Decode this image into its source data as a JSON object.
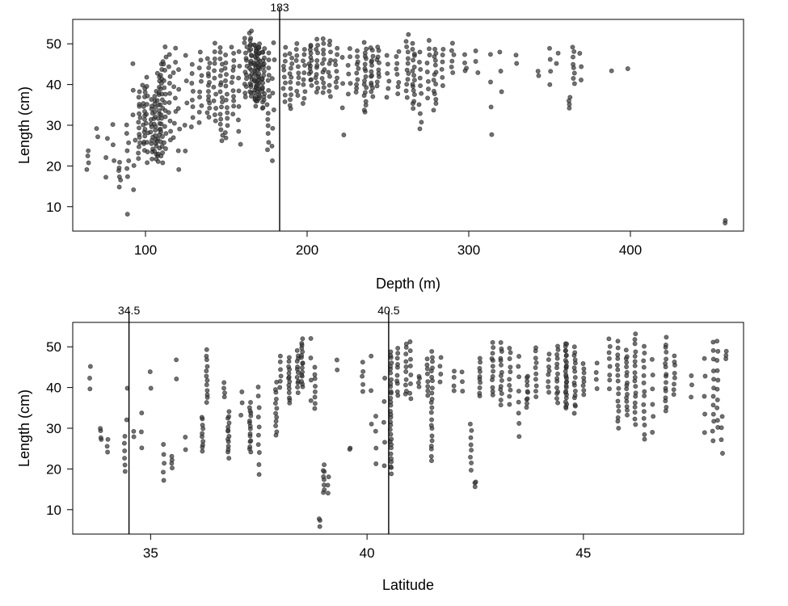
{
  "colors": {
    "point_fill": "#3a3a3a",
    "point_stroke": "#111111",
    "axis": "#000000",
    "background": "#ffffff"
  },
  "chart_data": [
    {
      "type": "scatter",
      "title": "",
      "xlabel": "Depth (m)",
      "ylabel": "Length (cm)",
      "xlim": [
        55,
        470
      ],
      "ylim": [
        4,
        56
      ],
      "xticks": [
        100,
        200,
        300,
        400
      ],
      "yticks": [
        10,
        20,
        30,
        40,
        50
      ],
      "grid": false,
      "legend": "none",
      "vlines": [
        {
          "x": 183,
          "label": "183"
        }
      ],
      "groups": [
        {
          "x": 64,
          "n": 4,
          "min": 19,
          "max": 24
        },
        {
          "x": 70,
          "n": 2,
          "min": 27,
          "max": 29
        },
        {
          "x": 76,
          "n": 3,
          "min": 17,
          "max": 27
        },
        {
          "x": 80,
          "n": 3,
          "min": 21,
          "max": 30
        },
        {
          "x": 84,
          "n": 6,
          "min": 15,
          "max": 21
        },
        {
          "x": 89,
          "n": 7,
          "min": 17,
          "max": 30
        },
        {
          "x": 89,
          "n": 1,
          "min": 8,
          "max": 8
        },
        {
          "x": 93,
          "n": 6,
          "min": 14,
          "max": 45
        },
        {
          "x": 96,
          "n": 14,
          "min": 22,
          "max": 38
        },
        {
          "x": 99,
          "n": 16,
          "min": 24,
          "max": 40
        },
        {
          "x": 101,
          "n": 10,
          "min": 21,
          "max": 42
        },
        {
          "x": 104,
          "n": 14,
          "min": 22,
          "max": 36
        },
        {
          "x": 106,
          "n": 18,
          "min": 22,
          "max": 38
        },
        {
          "x": 108,
          "n": 20,
          "min": 21,
          "max": 43
        },
        {
          "x": 110,
          "n": 22,
          "min": 21,
          "max": 46
        },
        {
          "x": 112,
          "n": 14,
          "min": 24,
          "max": 49
        },
        {
          "x": 115,
          "n": 10,
          "min": 26,
          "max": 47
        },
        {
          "x": 118,
          "n": 8,
          "min": 27,
          "max": 49
        },
        {
          "x": 121,
          "n": 6,
          "min": 19,
          "max": 44
        },
        {
          "x": 125,
          "n": 5,
          "min": 24,
          "max": 47
        },
        {
          "x": 129,
          "n": 8,
          "min": 30,
          "max": 45
        },
        {
          "x": 134,
          "n": 10,
          "min": 31,
          "max": 48
        },
        {
          "x": 139,
          "n": 14,
          "min": 32,
          "max": 46
        },
        {
          "x": 143,
          "n": 12,
          "min": 31,
          "max": 50
        },
        {
          "x": 147,
          "n": 18,
          "min": 26,
          "max": 49
        },
        {
          "x": 150,
          "n": 14,
          "min": 27,
          "max": 47
        },
        {
          "x": 154,
          "n": 12,
          "min": 33,
          "max": 49
        },
        {
          "x": 158,
          "n": 8,
          "min": 25,
          "max": 48
        },
        {
          "x": 162,
          "n": 14,
          "min": 37,
          "max": 51
        },
        {
          "x": 165,
          "n": 24,
          "min": 37,
          "max": 53
        },
        {
          "x": 168,
          "n": 28,
          "min": 35,
          "max": 50
        },
        {
          "x": 170,
          "n": 30,
          "min": 36,
          "max": 50
        },
        {
          "x": 173,
          "n": 22,
          "min": 34,
          "max": 49
        },
        {
          "x": 176,
          "n": 14,
          "min": 24,
          "max": 48
        },
        {
          "x": 179,
          "n": 8,
          "min": 21,
          "max": 50
        },
        {
          "x": 186,
          "n": 10,
          "min": 36,
          "max": 49
        },
        {
          "x": 190,
          "n": 12,
          "min": 34,
          "max": 48
        },
        {
          "x": 194,
          "n": 10,
          "min": 37,
          "max": 50
        },
        {
          "x": 198,
          "n": 10,
          "min": 35,
          "max": 49
        },
        {
          "x": 202,
          "n": 14,
          "min": 40,
          "max": 50
        },
        {
          "x": 206,
          "n": 12,
          "min": 38,
          "max": 51
        },
        {
          "x": 210,
          "n": 12,
          "min": 38,
          "max": 51
        },
        {
          "x": 214,
          "n": 10,
          "min": 37,
          "max": 51
        },
        {
          "x": 218,
          "n": 8,
          "min": 39,
          "max": 49
        },
        {
          "x": 222,
          "n": 4,
          "min": 28,
          "max": 47
        },
        {
          "x": 226,
          "n": 6,
          "min": 38,
          "max": 49
        },
        {
          "x": 231,
          "n": 10,
          "min": 38,
          "max": 48
        },
        {
          "x": 236,
          "n": 18,
          "min": 33,
          "max": 50
        },
        {
          "x": 240,
          "n": 14,
          "min": 37,
          "max": 49
        },
        {
          "x": 244,
          "n": 10,
          "min": 40,
          "max": 49
        },
        {
          "x": 250,
          "n": 6,
          "min": 37,
          "max": 47
        },
        {
          "x": 256,
          "n": 8,
          "min": 38,
          "max": 48
        },
        {
          "x": 262,
          "n": 12,
          "min": 37,
          "max": 52
        },
        {
          "x": 266,
          "n": 16,
          "min": 34,
          "max": 50
        },
        {
          "x": 270,
          "n": 10,
          "min": 29,
          "max": 48
        },
        {
          "x": 275,
          "n": 8,
          "min": 37,
          "max": 51
        },
        {
          "x": 279,
          "n": 14,
          "min": 34,
          "max": 49
        },
        {
          "x": 284,
          "n": 6,
          "min": 40,
          "max": 49
        },
        {
          "x": 290,
          "n": 6,
          "min": 43,
          "max": 50
        },
        {
          "x": 298,
          "n": 4,
          "min": 43,
          "max": 47
        },
        {
          "x": 305,
          "n": 3,
          "min": 43,
          "max": 48
        },
        {
          "x": 314,
          "n": 4,
          "min": 28,
          "max": 47
        },
        {
          "x": 320,
          "n": 3,
          "min": 38,
          "max": 48
        },
        {
          "x": 330,
          "n": 2,
          "min": 45,
          "max": 47
        },
        {
          "x": 343,
          "n": 2,
          "min": 42,
          "max": 43
        },
        {
          "x": 350,
          "n": 4,
          "min": 40,
          "max": 49
        },
        {
          "x": 355,
          "n": 2,
          "min": 45,
          "max": 48
        },
        {
          "x": 362,
          "n": 4,
          "min": 34,
          "max": 37
        },
        {
          "x": 365,
          "n": 8,
          "min": 40,
          "max": 49
        },
        {
          "x": 369,
          "n": 3,
          "min": 41,
          "max": 48
        },
        {
          "x": 388,
          "n": 1,
          "min": 43,
          "max": 43
        },
        {
          "x": 398,
          "n": 1,
          "min": 44,
          "max": 44
        },
        {
          "x": 459,
          "n": 2,
          "min": 6,
          "max": 7
        }
      ]
    },
    {
      "type": "scatter",
      "title": "",
      "xlabel": "Latitude",
      "ylabel": "Length (cm)",
      "xlim": [
        33.2,
        48.7
      ],
      "ylim": [
        4,
        56
      ],
      "xticks": [
        35,
        40,
        45
      ],
      "yticks": [
        10,
        20,
        30,
        40,
        50
      ],
      "grid": false,
      "legend": "none",
      "vlines": [
        {
          "x": 34.5,
          "label": "34.5"
        },
        {
          "x": 40.5,
          "label": "40.5"
        }
      ],
      "groups": [
        {
          "x": 33.6,
          "n": 3,
          "min": 40,
          "max": 45
        },
        {
          "x": 33.85,
          "n": 4,
          "min": 27,
          "max": 30
        },
        {
          "x": 34.0,
          "n": 3,
          "min": 24,
          "max": 27
        },
        {
          "x": 34.4,
          "n": 6,
          "min": 19,
          "max": 28
        },
        {
          "x": 34.45,
          "n": 2,
          "min": 32,
          "max": 40
        },
        {
          "x": 34.6,
          "n": 2,
          "min": 28,
          "max": 29
        },
        {
          "x": 34.8,
          "n": 3,
          "min": 25,
          "max": 34
        },
        {
          "x": 35.0,
          "n": 2,
          "min": 40,
          "max": 44
        },
        {
          "x": 35.3,
          "n": 5,
          "min": 17,
          "max": 26
        },
        {
          "x": 35.5,
          "n": 4,
          "min": 20,
          "max": 23
        },
        {
          "x": 35.6,
          "n": 2,
          "min": 42,
          "max": 47
        },
        {
          "x": 35.8,
          "n": 2,
          "min": 25,
          "max": 28
        },
        {
          "x": 36.2,
          "n": 10,
          "min": 24,
          "max": 33
        },
        {
          "x": 36.3,
          "n": 12,
          "min": 36,
          "max": 49
        },
        {
          "x": 36.7,
          "n": 4,
          "min": 38,
          "max": 41
        },
        {
          "x": 36.8,
          "n": 14,
          "min": 23,
          "max": 34
        },
        {
          "x": 37.1,
          "n": 3,
          "min": 33,
          "max": 39
        },
        {
          "x": 37.3,
          "n": 16,
          "min": 24,
          "max": 36
        },
        {
          "x": 37.5,
          "n": 10,
          "min": 19,
          "max": 40
        },
        {
          "x": 37.9,
          "n": 12,
          "min": 28,
          "max": 41
        },
        {
          "x": 38.0,
          "n": 6,
          "min": 40,
          "max": 48
        },
        {
          "x": 38.2,
          "n": 14,
          "min": 36,
          "max": 47
        },
        {
          "x": 38.4,
          "n": 12,
          "min": 39,
          "max": 49
        },
        {
          "x": 38.5,
          "n": 16,
          "min": 40,
          "max": 52
        },
        {
          "x": 38.7,
          "n": 4,
          "min": 37,
          "max": 52
        },
        {
          "x": 38.8,
          "n": 8,
          "min": 35,
          "max": 45
        },
        {
          "x": 38.9,
          "n": 3,
          "min": 6,
          "max": 8
        },
        {
          "x": 39.0,
          "n": 8,
          "min": 14,
          "max": 21
        },
        {
          "x": 39.1,
          "n": 3,
          "min": 14,
          "max": 18
        },
        {
          "x": 39.3,
          "n": 2,
          "min": 44,
          "max": 47
        },
        {
          "x": 39.6,
          "n": 2,
          "min": 25,
          "max": 25
        },
        {
          "x": 39.9,
          "n": 5,
          "min": 39,
          "max": 46
        },
        {
          "x": 40.1,
          "n": 3,
          "min": 31,
          "max": 48
        },
        {
          "x": 40.2,
          "n": 4,
          "min": 21,
          "max": 33
        },
        {
          "x": 40.4,
          "n": 5,
          "min": 21,
          "max": 42
        },
        {
          "x": 40.55,
          "n": 32,
          "min": 19,
          "max": 49
        },
        {
          "x": 40.7,
          "n": 10,
          "min": 38,
          "max": 50
        },
        {
          "x": 40.9,
          "n": 10,
          "min": 38,
          "max": 51
        },
        {
          "x": 41.0,
          "n": 8,
          "min": 37,
          "max": 51
        },
        {
          "x": 41.2,
          "n": 4,
          "min": 40,
          "max": 43
        },
        {
          "x": 41.4,
          "n": 8,
          "min": 38,
          "max": 47
        },
        {
          "x": 41.5,
          "n": 22,
          "min": 22,
          "max": 49
        },
        {
          "x": 41.7,
          "n": 4,
          "min": 41,
          "max": 47
        },
        {
          "x": 42.0,
          "n": 4,
          "min": 39,
          "max": 44
        },
        {
          "x": 42.2,
          "n": 3,
          "min": 39,
          "max": 44
        },
        {
          "x": 42.4,
          "n": 8,
          "min": 20,
          "max": 31
        },
        {
          "x": 42.5,
          "n": 3,
          "min": 16,
          "max": 17
        },
        {
          "x": 42.6,
          "n": 10,
          "min": 38,
          "max": 47
        },
        {
          "x": 42.9,
          "n": 12,
          "min": 38,
          "max": 51
        },
        {
          "x": 43.1,
          "n": 14,
          "min": 36,
          "max": 51
        },
        {
          "x": 43.3,
          "n": 10,
          "min": 36,
          "max": 50
        },
        {
          "x": 43.5,
          "n": 8,
          "min": 28,
          "max": 48
        },
        {
          "x": 43.7,
          "n": 10,
          "min": 35,
          "max": 43
        },
        {
          "x": 43.9,
          "n": 10,
          "min": 38,
          "max": 50
        },
        {
          "x": 44.2,
          "n": 8,
          "min": 39,
          "max": 48
        },
        {
          "x": 44.4,
          "n": 14,
          "min": 36,
          "max": 50
        },
        {
          "x": 44.6,
          "n": 28,
          "min": 35,
          "max": 51
        },
        {
          "x": 44.8,
          "n": 16,
          "min": 34,
          "max": 50
        },
        {
          "x": 45.0,
          "n": 8,
          "min": 38,
          "max": 46
        },
        {
          "x": 45.3,
          "n": 4,
          "min": 40,
          "max": 46
        },
        {
          "x": 45.6,
          "n": 8,
          "min": 40,
          "max": 52
        },
        {
          "x": 45.8,
          "n": 16,
          "min": 30,
          "max": 51
        },
        {
          "x": 46.0,
          "n": 16,
          "min": 33,
          "max": 49
        },
        {
          "x": 46.2,
          "n": 18,
          "min": 31,
          "max": 53
        },
        {
          "x": 46.4,
          "n": 14,
          "min": 27,
          "max": 50
        },
        {
          "x": 46.6,
          "n": 6,
          "min": 29,
          "max": 47
        },
        {
          "x": 46.9,
          "n": 16,
          "min": 34,
          "max": 52
        },
        {
          "x": 47.1,
          "n": 8,
          "min": 38,
          "max": 48
        },
        {
          "x": 47.5,
          "n": 3,
          "min": 38,
          "max": 43
        },
        {
          "x": 47.8,
          "n": 5,
          "min": 29,
          "max": 47
        },
        {
          "x": 48.0,
          "n": 12,
          "min": 27,
          "max": 51
        },
        {
          "x": 48.1,
          "n": 10,
          "min": 30,
          "max": 51
        },
        {
          "x": 48.2,
          "n": 4,
          "min": 24,
          "max": 33
        },
        {
          "x": 48.3,
          "n": 3,
          "min": 47,
          "max": 49
        }
      ]
    }
  ]
}
